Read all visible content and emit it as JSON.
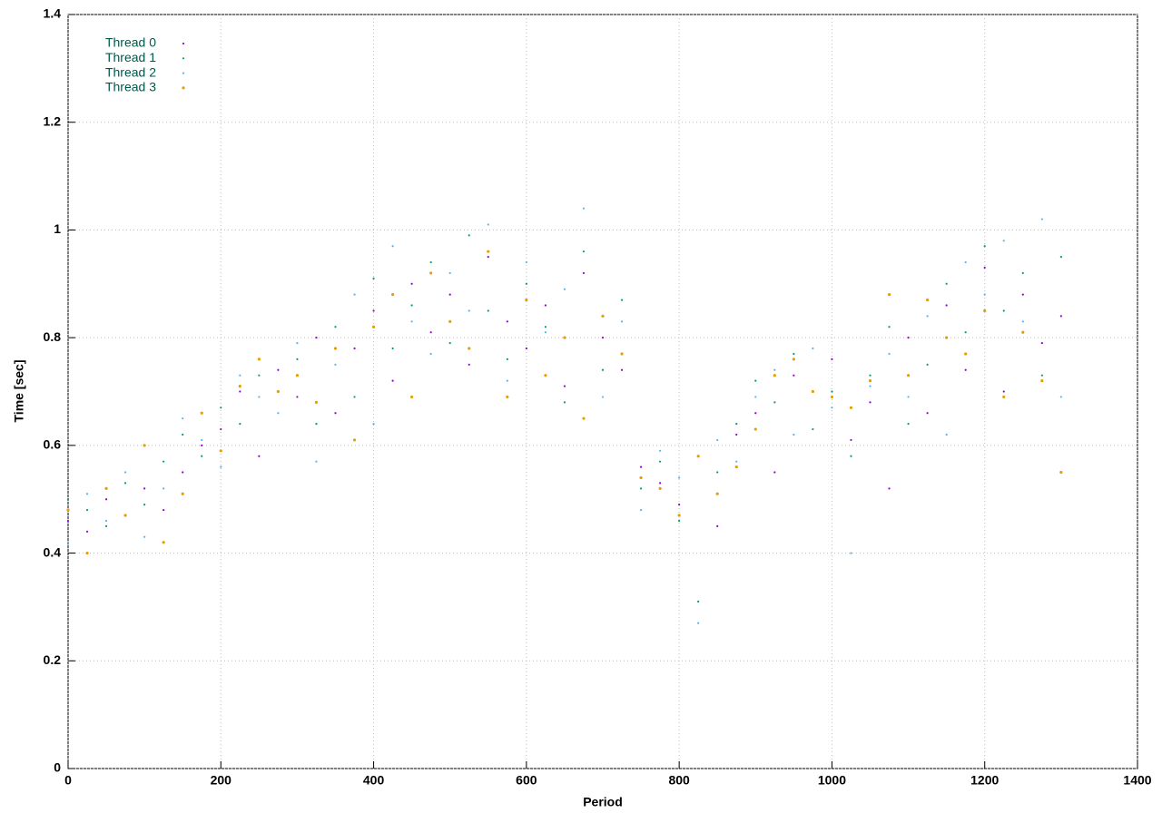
{
  "chart_data": {
    "type": "scatter",
    "x_label": "Period",
    "y_label": "Time [sec]",
    "x": [
      0,
      25,
      50,
      75,
      100,
      125,
      150,
      175,
      200,
      225,
      250,
      275,
      300,
      325,
      350,
      375,
      400,
      425,
      450,
      475,
      500,
      525,
      550,
      575,
      600,
      625,
      650,
      675,
      700,
      725,
      750,
      775,
      800,
      825,
      850,
      875,
      900,
      925,
      950,
      975,
      1000,
      1025,
      1050,
      1075,
      1100,
      1125,
      1150,
      1175,
      1200,
      1225,
      1250,
      1275,
      1300
    ],
    "series": [
      {
        "name": "Thread 0",
        "color": "#9400d3",
        "values": [
          0.46,
          0.44,
          0.5,
          0.47,
          0.52,
          0.48,
          0.55,
          0.6,
          0.63,
          0.7,
          0.58,
          0.74,
          0.69,
          0.8,
          0.66,
          0.78,
          0.85,
          0.72,
          0.9,
          0.81,
          0.88,
          0.75,
          0.95,
          0.83,
          0.78,
          0.86,
          0.71,
          0.92,
          0.8,
          0.74,
          0.56,
          0.53,
          0.49,
          0.58,
          0.45,
          0.62,
          0.66,
          0.55,
          0.73,
          0.7,
          0.76,
          0.61,
          0.68,
          0.52,
          0.8,
          0.66,
          0.86,
          0.74,
          0.93,
          0.7,
          0.88,
          0.79,
          0.84
        ]
      },
      {
        "name": "Thread 1",
        "color": "#009e73",
        "values": [
          0.5,
          0.48,
          0.45,
          0.53,
          0.49,
          0.57,
          0.62,
          0.58,
          0.67,
          0.64,
          0.73,
          0.7,
          0.76,
          0.64,
          0.82,
          0.69,
          0.91,
          0.78,
          0.86,
          0.94,
          0.79,
          0.99,
          0.85,
          0.76,
          0.9,
          0.82,
          0.68,
          0.96,
          0.74,
          0.87,
          0.52,
          0.57,
          0.46,
          0.31,
          0.55,
          0.64,
          0.72,
          0.68,
          0.77,
          0.63,
          0.7,
          0.58,
          0.73,
          0.82,
          0.64,
          0.75,
          0.9,
          0.81,
          0.97,
          0.85,
          0.92,
          0.73,
          0.95
        ]
      },
      {
        "name": "Thread 2",
        "color": "#56b4e9",
        "values": [
          0.42,
          0.51,
          0.46,
          0.55,
          0.43,
          0.52,
          0.65,
          0.61,
          0.56,
          0.73,
          0.69,
          0.66,
          0.79,
          0.57,
          0.75,
          0.88,
          0.64,
          0.97,
          0.83,
          0.77,
          0.92,
          0.85,
          1.01,
          0.72,
          0.94,
          0.81,
          0.89,
          1.04,
          0.69,
          0.83,
          0.48,
          0.59,
          0.54,
          0.27,
          0.61,
          0.57,
          0.69,
          0.74,
          0.62,
          0.78,
          0.67,
          0.4,
          0.71,
          0.77,
          0.69,
          0.84,
          0.62,
          0.94,
          0.88,
          0.98,
          0.83,
          1.02,
          0.69
        ]
      },
      {
        "name": "Thread 3",
        "color": "#e69f00",
        "values": [
          0.48,
          0.4,
          0.52,
          0.47,
          0.6,
          0.42,
          0.51,
          0.66,
          0.59,
          0.71,
          0.76,
          0.7,
          0.73,
          0.68,
          0.78,
          0.61,
          0.82,
          0.88,
          0.69,
          0.92,
          0.83,
          0.78,
          0.96,
          0.69,
          0.87,
          0.73,
          0.8,
          0.65,
          0.84,
          0.77,
          0.54,
          0.52,
          0.47,
          0.58,
          0.51,
          0.56,
          0.63,
          0.73,
          0.76,
          0.7,
          0.69,
          0.67,
          0.72,
          0.88,
          0.73,
          0.87,
          0.8,
          0.77,
          0.85,
          0.69,
          0.81,
          0.72,
          0.55
        ]
      }
    ],
    "xlim": [
      0,
      1400
    ],
    "xticks": [
      0,
      200,
      400,
      600,
      800,
      1000,
      1200,
      1400
    ],
    "ylim": [
      0,
      1.4
    ],
    "yticks": [
      0,
      0.2,
      0.4,
      0.6,
      0.8,
      1,
      1.2,
      1.4
    ],
    "grid": true,
    "legend": "top-left"
  }
}
